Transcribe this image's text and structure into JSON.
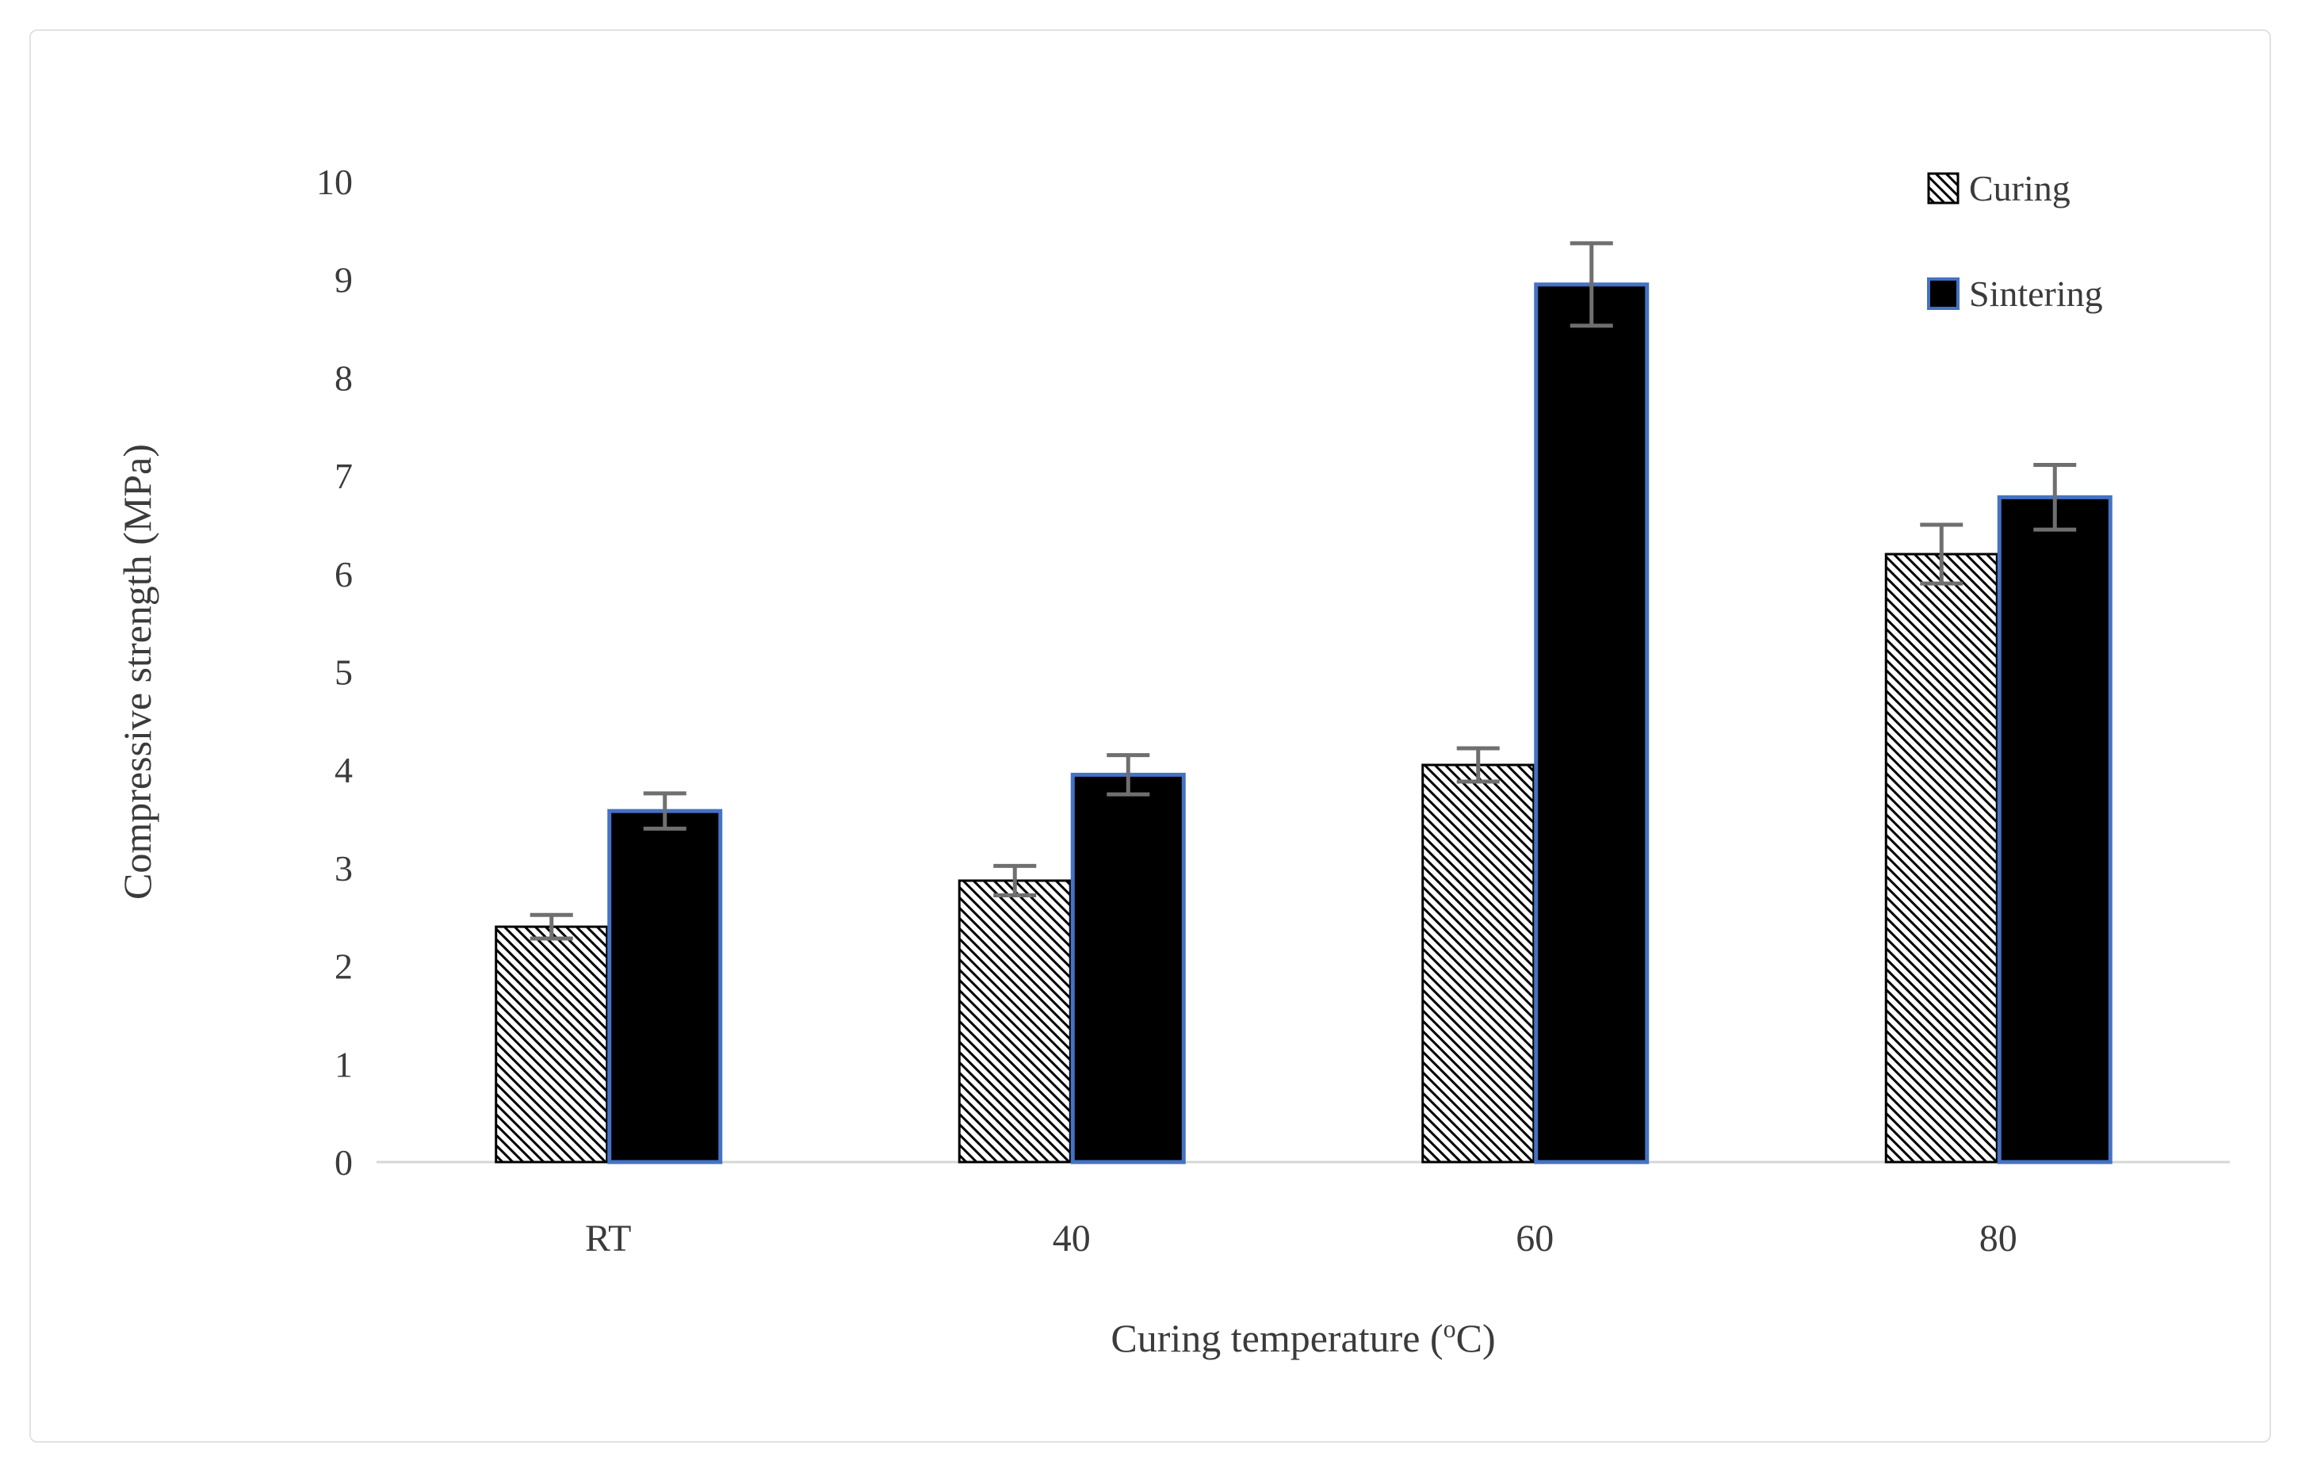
{
  "figure": {
    "background": "#ffffff",
    "frame_color": "#e2e2e2"
  },
  "chart_data": {
    "type": "bar",
    "title": "",
    "categories": [
      "RT",
      "40",
      "60",
      "80"
    ],
    "series": [
      {
        "name": "Curing",
        "style": "hatched",
        "values": [
          2.4,
          2.87,
          4.05,
          6.2
        ],
        "errors": [
          0.12,
          0.15,
          0.17,
          0.3
        ]
      },
      {
        "name": "Sintering",
        "style": "solid",
        "values": [
          3.58,
          3.95,
          8.95,
          6.78
        ],
        "errors": [
          0.18,
          0.2,
          0.42,
          0.33
        ]
      }
    ],
    "xlabel": "Curing temperature (°C)",
    "xlabel_parts": {
      "prefix": "Curing temperature (",
      "superscript": "o",
      "suffix": "C)"
    },
    "ylabel": "Compressive strength (MPa)",
    "ylim": [
      0,
      10
    ],
    "yticks": [
      0,
      1,
      2,
      3,
      4,
      5,
      6,
      7,
      8,
      9,
      10
    ],
    "grid": false,
    "error_bars": true,
    "legend_position": "top-right",
    "colors": {
      "bar_fill": "#000000",
      "bar_border_blue": "#4472c4",
      "hatch_line": "#000000",
      "error_bar": "#6f6f6f",
      "axis_line": "#d6d6d6",
      "text": "#3b3b3b"
    }
  }
}
